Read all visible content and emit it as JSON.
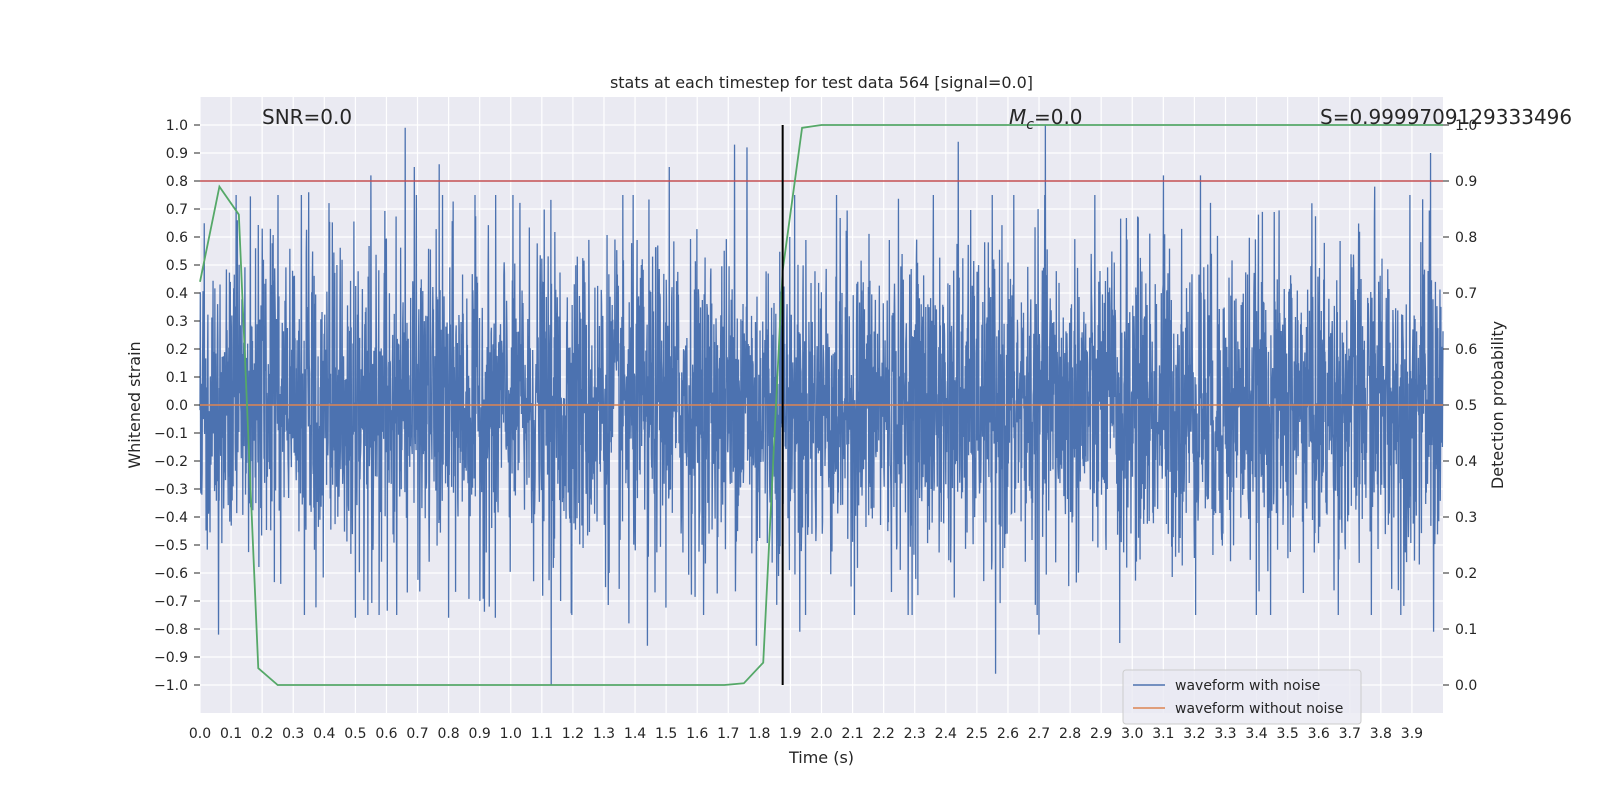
{
  "chart_data": {
    "type": "line",
    "title": "stats at each timestep for test data 564 [signal=0.0]",
    "xlabel": "Time (s)",
    "ylabel": "Whitened strain",
    "ylabel_right": "Detection probability",
    "xlim": [
      0.0,
      4.0
    ],
    "ylim": [
      -1.1,
      1.1
    ],
    "ylim_right": [
      -0.05,
      1.05
    ],
    "x_ticks": [
      "0.0",
      "0.1",
      "0.2",
      "0.3",
      "0.4",
      "0.5",
      "0.6",
      "0.7",
      "0.8",
      "0.9",
      "1.0",
      "1.1",
      "1.2",
      "1.3",
      "1.4",
      "1.5",
      "1.6",
      "1.7",
      "1.8",
      "1.9",
      "2.0",
      "2.1",
      "2.2",
      "2.3",
      "2.4",
      "2.5",
      "2.6",
      "2.7",
      "2.8",
      "2.9",
      "3.0",
      "3.1",
      "3.2",
      "3.3",
      "3.4",
      "3.5",
      "3.6",
      "3.7",
      "3.8",
      "3.9"
    ],
    "y_ticks": [
      "1.0",
      "0.9",
      "0.8",
      "0.7",
      "0.6",
      "0.5",
      "0.4",
      "0.3",
      "0.2",
      "0.1",
      "0.0",
      "−0.1",
      "−0.2",
      "−0.3",
      "−0.4",
      "−0.5",
      "−0.6",
      "−0.7",
      "−0.8",
      "−0.9",
      "−1.0"
    ],
    "y_ticks_right": [
      "1.0",
      "0.9",
      "0.8",
      "0.7",
      "0.6",
      "0.5",
      "0.4",
      "0.3",
      "0.2",
      "0.1",
      "0.0"
    ],
    "grid": true,
    "legend_position": "lower-right",
    "annotations": {
      "snr": "SNR=0.0",
      "mc_symbol": "M",
      "mc_sub": "c",
      "mc_value": "=0.0",
      "s": "S=0.9999709129333496"
    },
    "threshold": {
      "value": 0.9,
      "axis": "right",
      "color": "#c44e52"
    },
    "vline": {
      "x": 1.875,
      "color": "#000000"
    },
    "series": [
      {
        "name": "waveform with noise",
        "color": "#4c72b0",
        "axis": "left",
        "kind": "noise",
        "samples": 4096,
        "amplitude": 0.28,
        "peaks": [
          {
            "x": 0.06,
            "y": -0.82
          },
          {
            "x": 0.12,
            "y": 0.66
          },
          {
            "x": 0.2,
            "y": 0.63
          },
          {
            "x": 0.35,
            "y": 0.76
          },
          {
            "x": 0.5,
            "y": -0.76
          },
          {
            "x": 0.55,
            "y": 0.82
          },
          {
            "x": 0.66,
            "y": 0.99
          },
          {
            "x": 0.69,
            "y": 0.85
          },
          {
            "x": 0.77,
            "y": 0.86
          },
          {
            "x": 0.8,
            "y": -0.76
          },
          {
            "x": 0.95,
            "y": -0.76
          },
          {
            "x": 1.13,
            "y": -1.0
          },
          {
            "x": 1.16,
            "y": -0.7
          },
          {
            "x": 1.38,
            "y": -0.78
          },
          {
            "x": 1.44,
            "y": -0.86
          },
          {
            "x": 1.51,
            "y": 0.85
          },
          {
            "x": 1.72,
            "y": 0.93
          },
          {
            "x": 1.76,
            "y": 0.92
          },
          {
            "x": 1.79,
            "y": -0.86
          },
          {
            "x": 1.93,
            "y": -0.81
          },
          {
            "x": 2.44,
            "y": 0.94
          },
          {
            "x": 2.56,
            "y": -0.96
          },
          {
            "x": 2.72,
            "y": 1.0
          },
          {
            "x": 2.7,
            "y": -0.82
          },
          {
            "x": 2.96,
            "y": -0.85
          },
          {
            "x": 3.1,
            "y": 0.82
          },
          {
            "x": 3.22,
            "y": 0.82
          },
          {
            "x": 3.78,
            "y": 0.78
          },
          {
            "x": 3.96,
            "y": 0.9
          },
          {
            "x": 3.97,
            "y": -0.81
          }
        ]
      },
      {
        "name": "waveform without noise",
        "color": "#dd8452",
        "axis": "left",
        "x": [
          0.0,
          4.0
        ],
        "y": [
          0.0,
          0.0
        ]
      },
      {
        "color": "#55a868",
        "axis": "right",
        "x": [
          0.0,
          0.0625,
          0.125,
          0.1875,
          0.25,
          0.3125,
          0.375,
          0.4375,
          0.5,
          0.5625,
          0.625,
          0.6875,
          0.75,
          0.8125,
          0.875,
          0.9375,
          1.0,
          1.0625,
          1.125,
          1.1875,
          1.25,
          1.3125,
          1.375,
          1.4375,
          1.5,
          1.5625,
          1.625,
          1.6875,
          1.75,
          1.8125,
          1.875,
          1.9375,
          2.0,
          2.0625,
          2.125,
          2.1875,
          2.25,
          2.3125,
          2.375,
          2.4375,
          2.5,
          2.5625,
          2.625,
          2.6875,
          2.75,
          2.8125,
          2.875,
          2.9375,
          3.0,
          3.0625,
          3.125,
          3.1875,
          3.25,
          3.3125,
          3.375,
          3.4375,
          3.5,
          3.5625,
          3.625,
          3.6875,
          3.75,
          3.8125,
          3.875,
          3.9375,
          4.0
        ],
        "y": [
          0.72,
          0.89,
          0.84,
          0.03,
          0.0,
          0.0,
          0.0,
          0.0,
          0.0,
          0.0,
          0.0,
          0.0,
          0.0,
          0.0,
          0.0,
          0.0,
          0.0,
          0.0,
          0.0,
          0.0,
          0.0,
          0.0,
          0.0,
          0.0,
          0.0,
          0.0,
          0.0,
          0.0,
          0.003,
          0.04,
          0.74,
          0.995,
          1.0,
          1.0,
          1.0,
          1.0,
          1.0,
          1.0,
          1.0,
          1.0,
          1.0,
          1.0,
          1.0,
          1.0,
          1.0,
          1.0,
          1.0,
          1.0,
          1.0,
          1.0,
          1.0,
          1.0,
          1.0,
          1.0,
          1.0,
          1.0,
          1.0,
          1.0,
          1.0,
          1.0,
          1.0,
          1.0,
          1.0,
          1.0,
          1.0
        ]
      }
    ]
  }
}
